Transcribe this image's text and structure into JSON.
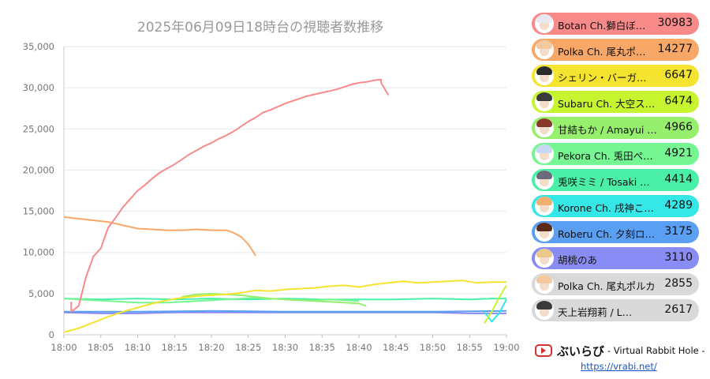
{
  "chart_data": {
    "type": "line",
    "title": "2025年06月09日18時台の視聴者数推移",
    "xlabel": "",
    "ylabel": "",
    "xlim": [
      "18:00",
      "19:00"
    ],
    "ylim": [
      0,
      35000
    ],
    "y_ticks": [
      "0",
      "5,000",
      "10,000",
      "15,000",
      "20,000",
      "25,000",
      "30,000",
      "35,000"
    ],
    "x_ticks": [
      "18:00",
      "18:05",
      "18:10",
      "18:15",
      "18:20",
      "18:25",
      "18:30",
      "18:35",
      "18:40",
      "18:45",
      "18:50",
      "18:55",
      "19:00"
    ],
    "grid": true,
    "legend_placement": "right",
    "series": [
      {
        "name": "Botan Ch.獅白ぼたん",
        "display_name": "Botan Ch.獅白ぼ…",
        "value": 30983,
        "color": "#f98a8a",
        "points": [
          [
            "18:01",
            4000
          ],
          [
            "18:01",
            2800
          ],
          [
            "18:02",
            3500
          ],
          [
            "18:03",
            7000
          ],
          [
            "18:04",
            9500
          ],
          [
            "18:05",
            10500
          ],
          [
            "18:06",
            13000
          ],
          [
            "18:07",
            14200
          ],
          [
            "18:08",
            15500
          ],
          [
            "18:09",
            16500
          ],
          [
            "18:10",
            17500
          ],
          [
            "18:11",
            18200
          ],
          [
            "18:12",
            19000
          ],
          [
            "18:13",
            19700
          ],
          [
            "18:14",
            20200
          ],
          [
            "18:15",
            20700
          ],
          [
            "18:16",
            21300
          ],
          [
            "18:17",
            21900
          ],
          [
            "18:18",
            22400
          ],
          [
            "18:19",
            22900
          ],
          [
            "18:20",
            23300
          ],
          [
            "18:21",
            23800
          ],
          [
            "18:22",
            24200
          ],
          [
            "18:23",
            24700
          ],
          [
            "18:24",
            25300
          ],
          [
            "18:25",
            25900
          ],
          [
            "18:26",
            26400
          ],
          [
            "18:27",
            27000
          ],
          [
            "18:28",
            27300
          ],
          [
            "18:29",
            27700
          ],
          [
            "18:30",
            28100
          ],
          [
            "18:31",
            28400
          ],
          [
            "18:32",
            28700
          ],
          [
            "18:33",
            29000
          ],
          [
            "18:34",
            29200
          ],
          [
            "18:35",
            29400
          ],
          [
            "18:36",
            29600
          ],
          [
            "18:37",
            29800
          ],
          [
            "18:38",
            30100
          ],
          [
            "18:39",
            30400
          ],
          [
            "18:40",
            30600
          ],
          [
            "18:41",
            30700
          ],
          [
            "18:42",
            30900
          ],
          [
            "18:43",
            31000
          ],
          [
            "18:43",
            30600
          ],
          [
            "18:44",
            29100
          ]
        ]
      },
      {
        "name": "Polka Ch. 尾丸ポルカ",
        "display_name": "Polka Ch. 尾丸ポ…",
        "value": 14277,
        "color": "#f9a766",
        "points": [
          [
            "18:00",
            14300
          ],
          [
            "18:02",
            14100
          ],
          [
            "18:04",
            13900
          ],
          [
            "18:06",
            13700
          ],
          [
            "18:08",
            13300
          ],
          [
            "18:10",
            12900
          ],
          [
            "18:12",
            12800
          ],
          [
            "18:14",
            12700
          ],
          [
            "18:16",
            12700
          ],
          [
            "18:18",
            12800
          ],
          [
            "18:20",
            12700
          ],
          [
            "18:22",
            12700
          ],
          [
            "18:23",
            12400
          ],
          [
            "18:24",
            11900
          ],
          [
            "18:25",
            11000
          ],
          [
            "18:26",
            9600
          ]
        ]
      },
      {
        "name": "シェリン・バーガンディ",
        "display_name": "シェリン・バーガ…",
        "value": 6647,
        "color": "#f5e42f",
        "points": [
          [
            "18:00",
            300
          ],
          [
            "18:02",
            800
          ],
          [
            "18:04",
            1500
          ],
          [
            "18:06",
            2200
          ],
          [
            "18:08",
            2800
          ],
          [
            "18:10",
            3300
          ],
          [
            "18:12",
            3800
          ],
          [
            "18:14",
            4200
          ],
          [
            "18:16",
            4500
          ],
          [
            "18:18",
            4700
          ],
          [
            "18:20",
            4800
          ],
          [
            "18:22",
            4900
          ],
          [
            "18:24",
            5100
          ],
          [
            "18:26",
            5400
          ],
          [
            "18:28",
            5300
          ],
          [
            "18:30",
            5500
          ],
          [
            "18:32",
            5600
          ],
          [
            "18:34",
            5700
          ],
          [
            "18:36",
            5900
          ],
          [
            "18:38",
            6000
          ],
          [
            "18:40",
            5800
          ],
          [
            "18:42",
            6100
          ],
          [
            "18:44",
            6300
          ],
          [
            "18:46",
            6500
          ],
          [
            "18:48",
            6300
          ],
          [
            "18:50",
            6400
          ],
          [
            "18:52",
            6500
          ],
          [
            "18:54",
            6600
          ],
          [
            "18:56",
            6300
          ],
          [
            "18:58",
            6400
          ],
          [
            "19:00",
            6400
          ]
        ]
      },
      {
        "name": "Subaru Ch. 大空スバル",
        "display_name": "Subaru Ch. 大空ス…",
        "value": 6474,
        "color": "#c6f52f",
        "points": [
          [
            "18:57",
            1400
          ],
          [
            "18:58",
            2800
          ],
          [
            "18:59",
            4500
          ],
          [
            "19:00",
            6000
          ]
        ]
      },
      {
        "name": "甘結もか / Amayui Moka",
        "display_name": "甘結もか / Amayui …",
        "value": 4966,
        "color": "#96f06e",
        "points": [
          [
            "18:16",
            4600
          ],
          [
            "18:18",
            4900
          ],
          [
            "18:20",
            5000
          ],
          [
            "18:22",
            4900
          ],
          [
            "18:24",
            4800
          ],
          [
            "18:26",
            4600
          ],
          [
            "18:28",
            4400
          ],
          [
            "18:30",
            4300
          ],
          [
            "18:32",
            4200
          ],
          [
            "18:34",
            4100
          ],
          [
            "18:36",
            4000
          ],
          [
            "18:38",
            3900
          ],
          [
            "18:40",
            3800
          ],
          [
            "18:41",
            3500
          ]
        ]
      },
      {
        "name": "Pekora Ch. 兎田ぺこら",
        "display_name": "Pekora Ch. 兎田ぺ…",
        "value": 4921,
        "color": "#76f593",
        "points": [
          [
            "18:00",
            4400
          ],
          [
            "18:02",
            4300
          ],
          [
            "18:04",
            4200
          ],
          [
            "18:06",
            4100
          ],
          [
            "18:08",
            4000
          ],
          [
            "18:10",
            3900
          ],
          [
            "18:12",
            3900
          ],
          [
            "18:14",
            3900
          ],
          [
            "18:16",
            4000
          ],
          [
            "18:18",
            4100
          ],
          [
            "18:20",
            4200
          ],
          [
            "18:22",
            4300
          ],
          [
            "18:24",
            4400
          ],
          [
            "18:26",
            4500
          ],
          [
            "18:28",
            4400
          ],
          [
            "18:30",
            4300
          ],
          [
            "18:32",
            4200
          ],
          [
            "18:34",
            4200
          ],
          [
            "18:36",
            4300
          ],
          [
            "18:38",
            4200
          ],
          [
            "18:40",
            4100
          ]
        ]
      },
      {
        "name": "兎咲ミミ / Tosaki Mimi",
        "display_name": "兎咲ミミ / Tosaki …",
        "value": 4414,
        "color": "#4af0a8",
        "points": [
          [
            "18:00",
            4400
          ],
          [
            "18:05",
            4300
          ],
          [
            "18:10",
            4400
          ],
          [
            "18:15",
            4300
          ],
          [
            "18:20",
            4400
          ],
          [
            "18:25",
            4300
          ],
          [
            "18:30",
            4400
          ],
          [
            "18:35",
            4300
          ],
          [
            "18:40",
            4300
          ],
          [
            "18:45",
            4300
          ],
          [
            "18:50",
            4400
          ],
          [
            "18:55",
            4300
          ],
          [
            "18:58",
            4400
          ],
          [
            "19:00",
            4400
          ]
        ]
      },
      {
        "name": "Korone Ch. 戌神ころね",
        "display_name": "Korone Ch. 戌神こ…",
        "value": 4289,
        "color": "#35e7e7",
        "points": [
          [
            "18:57",
            2800
          ],
          [
            "18:58",
            1600
          ],
          [
            "18:59",
            2600
          ],
          [
            "19:00",
            4300
          ]
        ]
      },
      {
        "name": "Roberu Ch. 夕刻ロベル",
        "display_name": "Roberu Ch. 夕刻ロ…",
        "value": 3175,
        "color": "#5a9ff2",
        "points": [
          [
            "18:00",
            2800
          ],
          [
            "18:10",
            2800
          ],
          [
            "18:20",
            2900
          ],
          [
            "18:30",
            2800
          ],
          [
            "18:40",
            2800
          ],
          [
            "18:50",
            2800
          ],
          [
            "19:00",
            2900
          ]
        ]
      },
      {
        "name": "胡桃のあ",
        "display_name": "胡桃のあ",
        "value": 3110,
        "color": "#8a8cf5",
        "points": [
          [
            "18:00",
            2700
          ],
          [
            "18:05",
            2600
          ],
          [
            "18:10",
            2600
          ],
          [
            "18:15",
            2700
          ],
          [
            "18:20",
            2700
          ],
          [
            "18:25",
            2700
          ],
          [
            "18:30",
            2700
          ],
          [
            "18:35",
            2700
          ],
          [
            "18:40",
            2700
          ],
          [
            "18:45",
            2700
          ],
          [
            "18:50",
            2700
          ],
          [
            "18:55",
            2600
          ],
          [
            "19:00",
            2600
          ]
        ]
      },
      {
        "name": "Polka Ch. 尾丸ポルカ",
        "display_name": "Polka Ch. 尾丸ポルカ",
        "value": 2855,
        "color": "#d9d9d9",
        "points": []
      },
      {
        "name": "天上岩翔莉 / L…",
        "display_name": "天上岩翔莉 / L…",
        "value": 2617,
        "color": "#d9d9d9",
        "points": []
      }
    ]
  },
  "branding": {
    "name": "ぶいらび",
    "tagline": "- Virtual Rabbit Hole -",
    "url": "https://vrabi.net/"
  },
  "icons": {
    "brand_logo": "play-button-icon",
    "legend_avatar": "avatar-icon"
  }
}
